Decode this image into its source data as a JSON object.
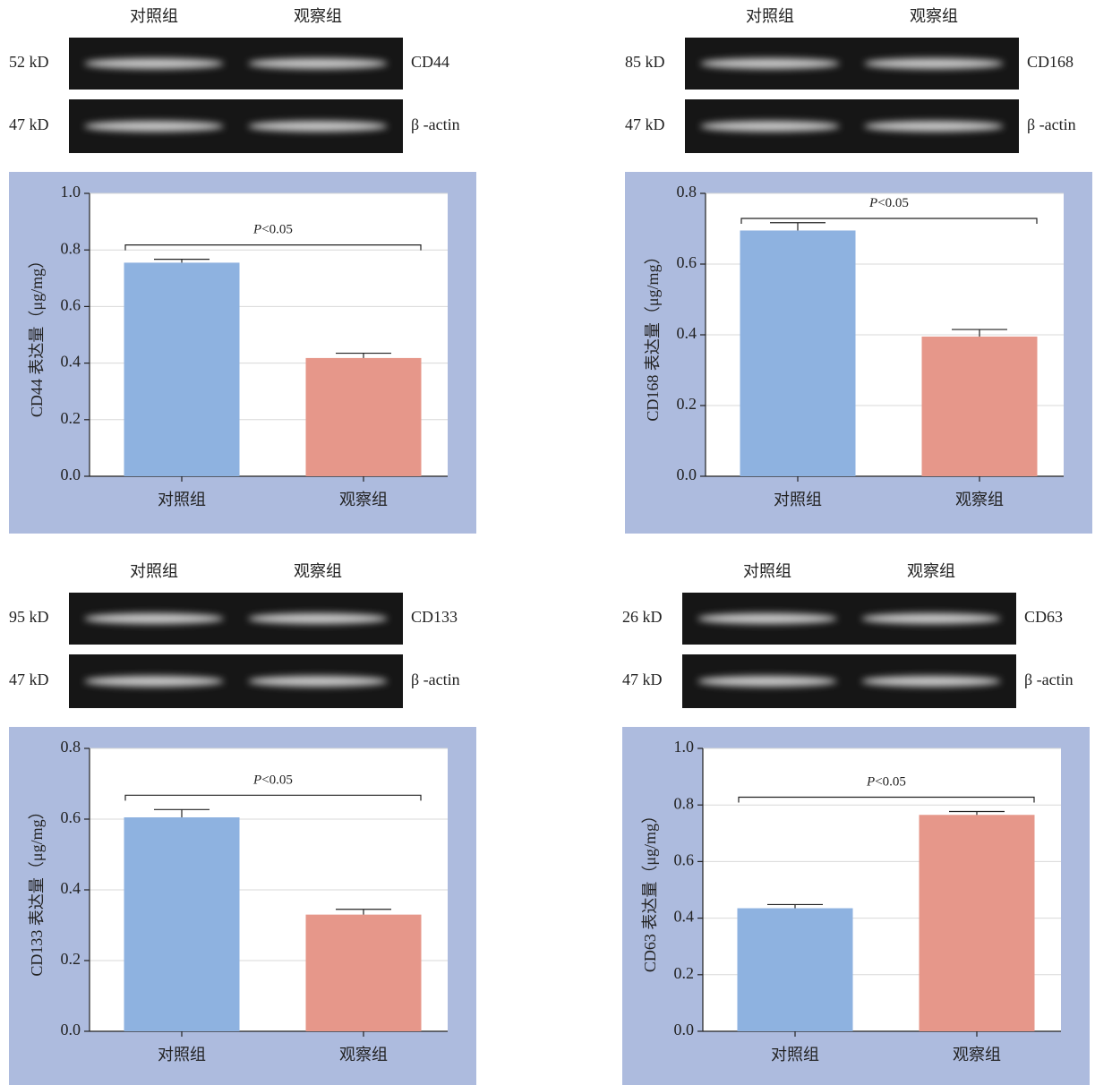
{
  "chart_data": [
    {
      "type": "bar",
      "blot": {
        "lanes": [
          "对照组",
          "观察组"
        ],
        "rows": [
          {
            "marker": "52 kD",
            "label": "CD44"
          },
          {
            "marker": "47 kD",
            "label": "β -actin"
          }
        ]
      },
      "ylabel": "CD44 表达量（μg/mg）",
      "annotation": "P<0.05",
      "categories": [
        "对照组",
        "观察组"
      ],
      "values": [
        0.755,
        0.418
      ],
      "errors": [
        0.012,
        0.017
      ],
      "colors": [
        "#8eb2e0",
        "#e6978a"
      ],
      "ylim": [
        0,
        1
      ],
      "yticks": [
        {
          "value": 0,
          "label": "0.0"
        },
        0.2,
        0.4,
        0.6,
        0.8,
        {
          "value": 1,
          "label": "1.0"
        }
      ],
      "grid": true
    },
    {
      "type": "bar",
      "blot": {
        "lanes": [
          "对照组",
          "观察组"
        ],
        "rows": [
          {
            "marker": "85 kD",
            "label": "CD168"
          },
          {
            "marker": "47 kD",
            "label": "β -actin"
          }
        ]
      },
      "ylabel": "CD168 表达量（μg/mg）",
      "annotation": "P<0.05",
      "categories": [
        "对照组",
        "观察组"
      ],
      "values": [
        0.695,
        0.395
      ],
      "errors": [
        0.022,
        0.02
      ],
      "colors": [
        "#8eb2e0",
        "#e6978a"
      ],
      "ylim": [
        0,
        0.8
      ],
      "yticks": [
        {
          "value": 0,
          "label": "0.0"
        },
        0.2,
        0.4,
        0.6,
        0.8
      ],
      "grid": true
    },
    {
      "type": "bar",
      "blot": {
        "lanes": [
          "对照组",
          "观察组"
        ],
        "rows": [
          {
            "marker": "95 kD",
            "label": "CD133"
          },
          {
            "marker": "47 kD",
            "label": "β -actin"
          }
        ]
      },
      "ylabel": "CD133 表达量（μg/mg）",
      "annotation": "P<0.05",
      "categories": [
        "对照组",
        "观察组"
      ],
      "values": [
        0.605,
        0.33
      ],
      "errors": [
        0.022,
        0.015
      ],
      "colors": [
        "#8eb2e0",
        "#e6978a"
      ],
      "ylim": [
        0,
        0.8
      ],
      "yticks": [
        {
          "value": 0,
          "label": "0.0"
        },
        0.2,
        0.4,
        0.6,
        0.8
      ],
      "grid": true
    },
    {
      "type": "bar",
      "blot": {
        "lanes": [
          "对照组",
          "观察组"
        ],
        "rows": [
          {
            "marker": "26 kD",
            "label": "CD63"
          },
          {
            "marker": "47 kD",
            "label": "β -actin"
          }
        ]
      },
      "ylabel": "CD63 表达量（μg/mg）",
      "annotation": "P<0.05",
      "categories": [
        "对照组",
        "观察组"
      ],
      "values": [
        0.435,
        0.765
      ],
      "errors": [
        0.013,
        0.012
      ],
      "colors": [
        "#8eb2e0",
        "#e6978a"
      ],
      "ylim": [
        0,
        1
      ],
      "yticks": [
        {
          "value": 0,
          "label": "0.0"
        },
        0.2,
        0.4,
        0.6,
        0.8,
        {
          "value": 1,
          "label": "1.0"
        }
      ],
      "grid": true
    }
  ]
}
